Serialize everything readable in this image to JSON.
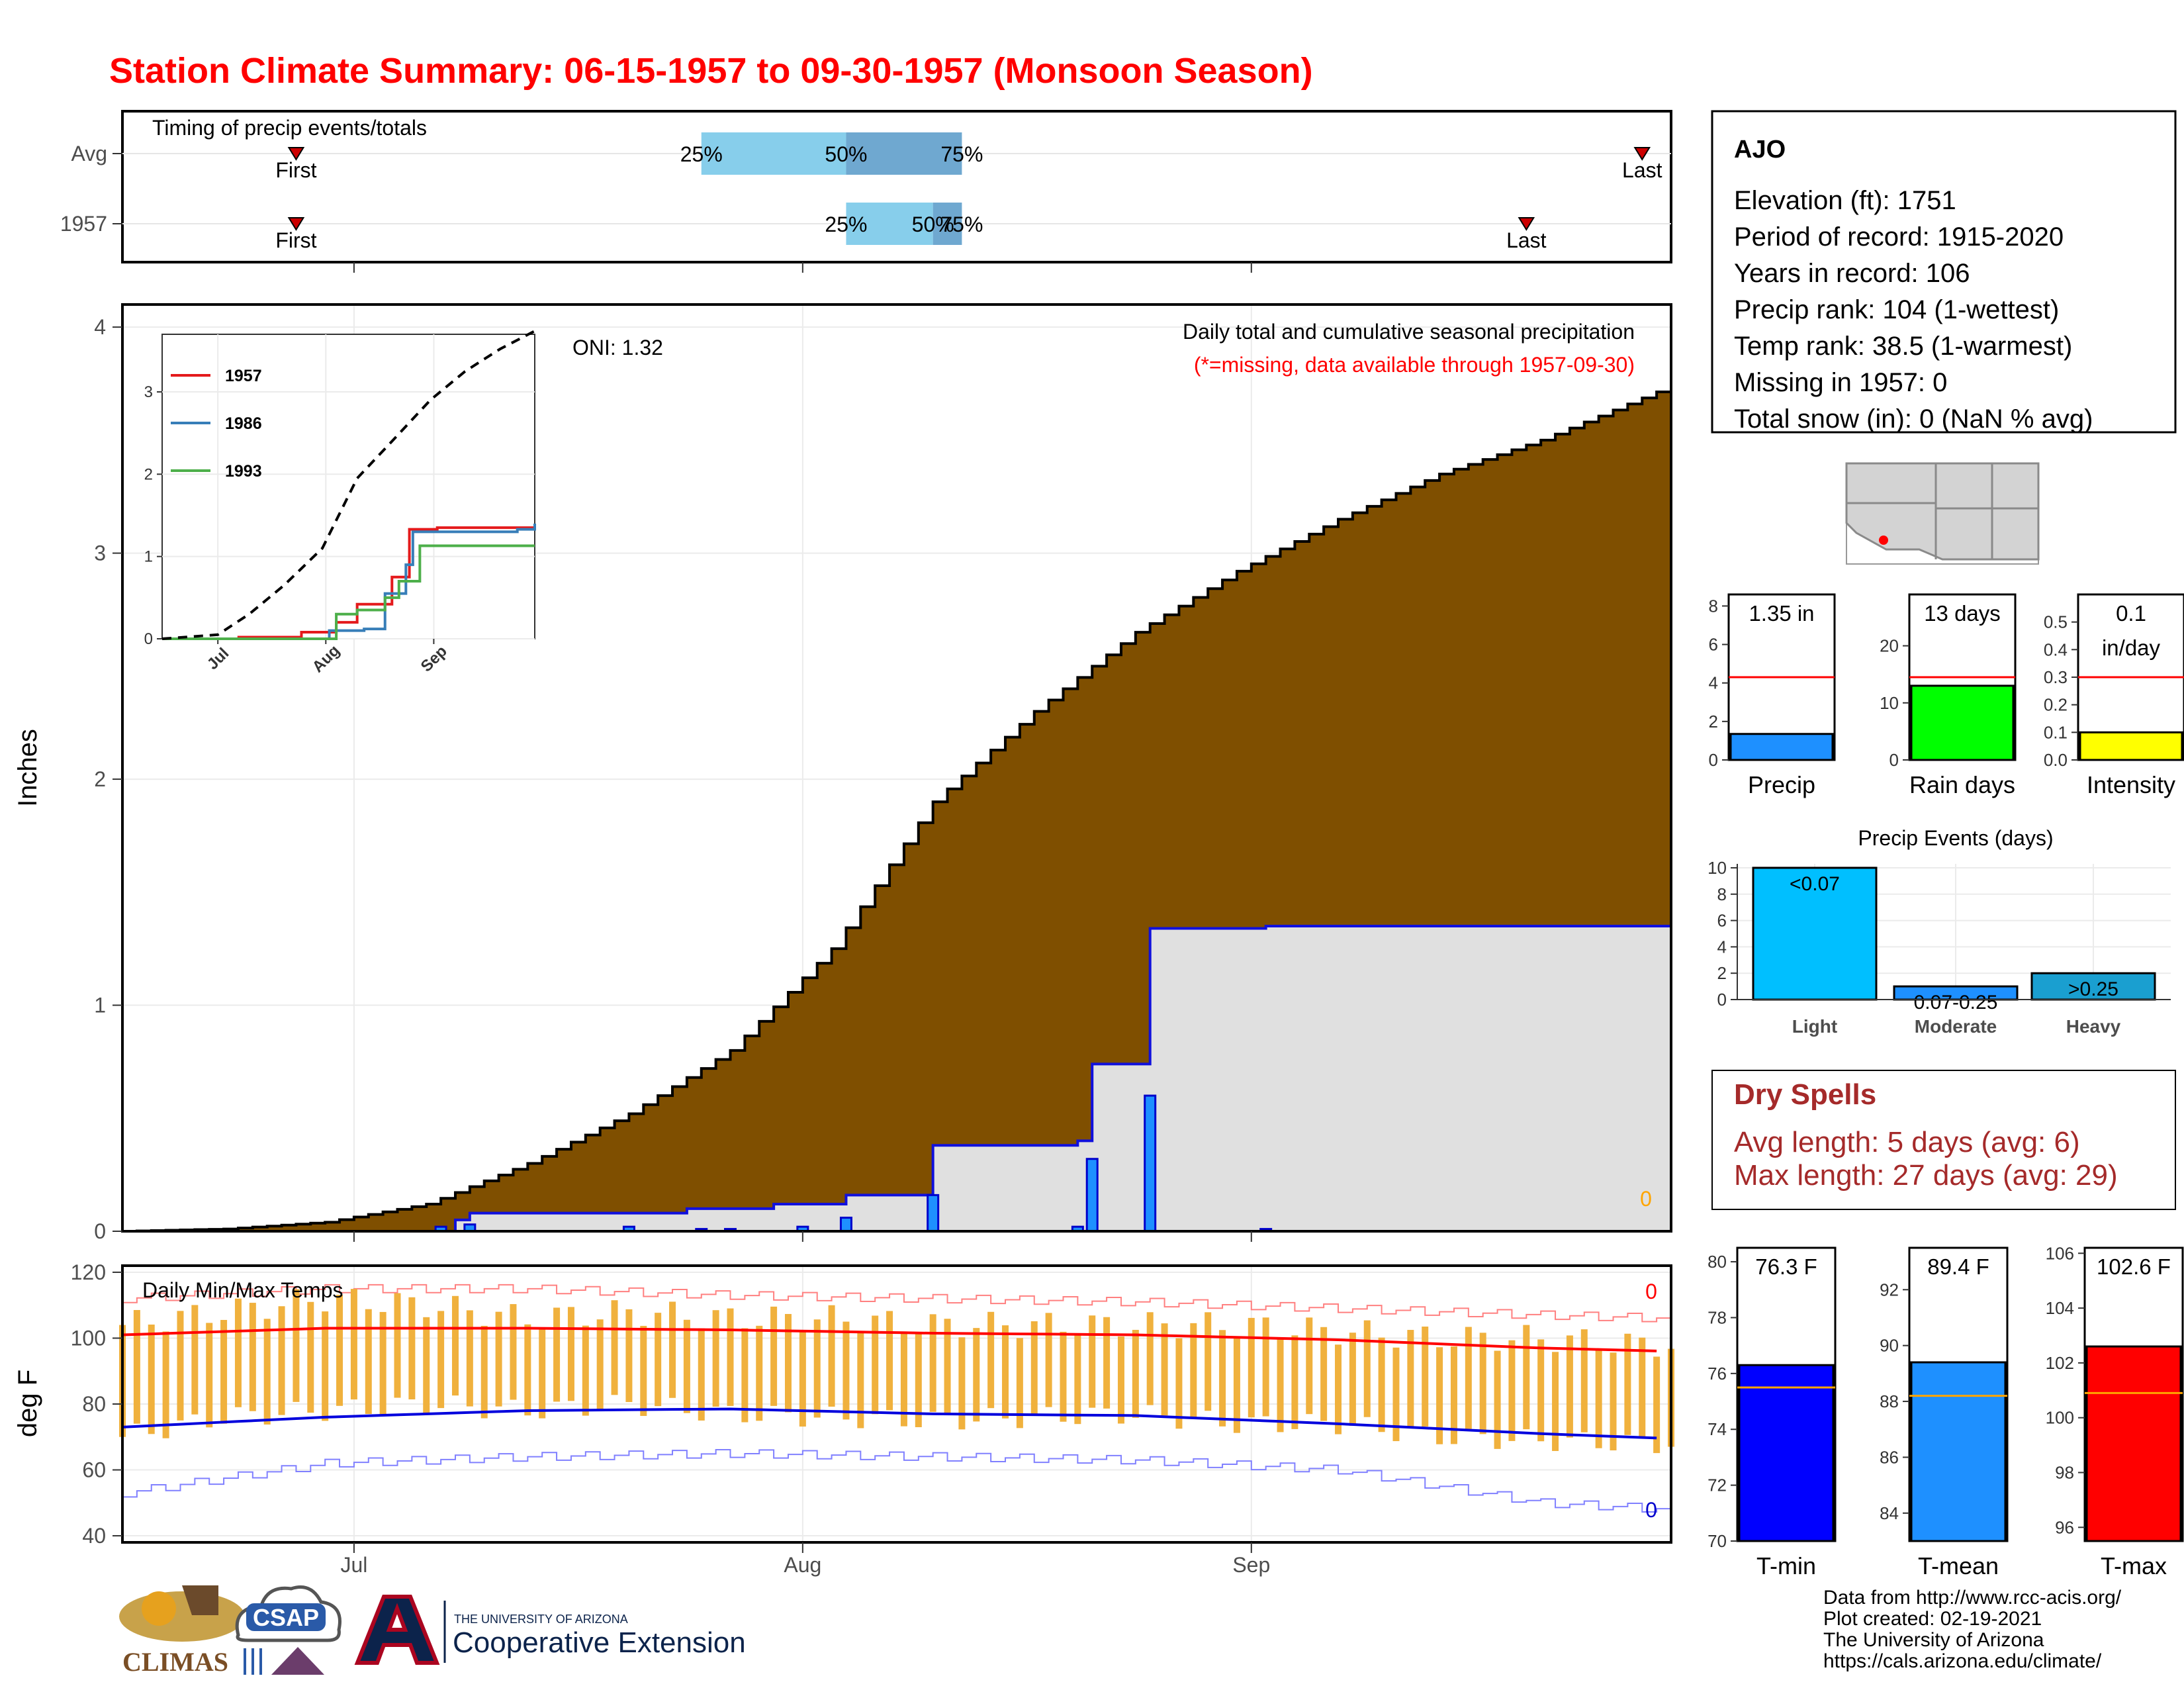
{
  "title": "Station Climate Summary: 06-15-1957 to 09-30-1957 (Monsoon Season)",
  "timing": {
    "title": "Timing of precip events/totals",
    "rows": [
      {
        "label": "Avg",
        "q25_date": "1957-07-25",
        "q50_date": "1957-08-04",
        "q75_date": "1957-08-12",
        "q25_label": "25%",
        "q50_label": "50%",
        "q75_label": "75%",
        "first_date": "1957-06-27",
        "first_label": "First",
        "last_date": "1957-09-28",
        "last_label": "Last"
      },
      {
        "label": "1957",
        "q25_date": "1957-08-04",
        "q50_date": "1957-08-10",
        "q75_date": "1957-08-12",
        "q25_label": "25%",
        "q50_label": "50%",
        "q75_label": "75%",
        "first_date": "1957-06-27",
        "first_label": "First",
        "last_date": "1957-09-20",
        "last_label": "Last"
      }
    ],
    "colors": {
      "light": "#87ceeb",
      "dark": "#6fa8d0",
      "marker": "#cc0000"
    }
  },
  "precip_panel": {
    "title": "Daily total and cumulative seasonal precipitation",
    "subtitle": "(*=missing, data available through 1957-09-30)",
    "oni_label": "ONI: 1.32",
    "ylabel": "Inches",
    "missing_count": "0",
    "yticks": [
      "0",
      "1",
      "2",
      "3",
      "4"
    ],
    "xticks": [
      {
        "date": "1957-07-01",
        "label": "Jul"
      },
      {
        "date": "1957-08-01",
        "label": "Aug"
      },
      {
        "date": "1957-09-01",
        "label": "Sep"
      }
    ],
    "inset": {
      "yticks": [
        "0",
        "1",
        "2",
        "3"
      ],
      "xticks": [
        "Jul",
        "Aug",
        "Sep"
      ],
      "legend": [
        {
          "name": "1957",
          "color": "#e41a1c"
        },
        {
          "name": "1986",
          "color": "#377eb8"
        },
        {
          "name": "1993",
          "color": "#4daf4a"
        }
      ]
    }
  },
  "temp_panel": {
    "title": "Daily Min/Max Temps",
    "ylabel": "deg F",
    "yticks": [
      "40",
      "60",
      "80",
      "100",
      "120"
    ],
    "record_high_missing": "0",
    "record_low_missing": "0",
    "xticks": [
      {
        "date": "1957-07-01",
        "label": "Jul"
      },
      {
        "date": "1957-08-01",
        "label": "Aug"
      },
      {
        "date": "1957-09-01",
        "label": "Sep"
      }
    ]
  },
  "station": {
    "name": "AJO",
    "lines": [
      "Elevation (ft): 1751",
      "Period of record: 1915-2020",
      "Years in record: 106",
      "Precip rank: 104 (1-wettest)",
      "Temp rank: 38.5 (1-warmest)",
      "Missing in 1957: 0",
      "Total snow (in): 0 (NaN % avg)"
    ]
  },
  "summary_bars": [
    {
      "label": "Precip",
      "value_label": "1.35 in",
      "value": 1.35,
      "avg": 4.3,
      "ymin": 0,
      "ymax": 8.6,
      "ticks": [
        "0",
        "2",
        "4",
        "6",
        "8"
      ],
      "tick_values": [
        0,
        2,
        4,
        6,
        8
      ],
      "color": "#1e90ff"
    },
    {
      "label": "Rain days",
      "value_label": "13 days",
      "value": 13,
      "avg": 14.5,
      "ymin": 0,
      "ymax": 29,
      "ticks": [
        "0",
        "10",
        "20"
      ],
      "tick_values": [
        0,
        10,
        20
      ],
      "color": "#00ff00"
    },
    {
      "label": "Intensity",
      "value_label": "0.1 in/day",
      "value_label_lines": [
        "0.1",
        "in/day"
      ],
      "value": 0.1,
      "avg": 0.3,
      "ymin": 0,
      "ymax": 0.6,
      "ticks": [
        "0.0",
        "0.1",
        "0.2",
        "0.3",
        "0.4",
        "0.5"
      ],
      "tick_values": [
        0,
        0.1,
        0.2,
        0.3,
        0.4,
        0.5
      ],
      "color": "#ffff00"
    }
  ],
  "precip_events": {
    "title": "Precip Events (days)",
    "categories": [
      "Light",
      "Moderate",
      "Heavy"
    ],
    "bar_labels": [
      "<0.07",
      "0.07-0.25",
      ">0.25"
    ],
    "values": [
      10,
      1,
      2
    ],
    "colors": [
      "#00bfff",
      "#1e90ff",
      "#1a9fd0"
    ],
    "ticks": [
      "0",
      "2",
      "4",
      "6",
      "8",
      "10"
    ]
  },
  "dry_spells": {
    "title": "Dry Spells",
    "avg_line": "Avg length: 5 days (avg: 6)",
    "max_line": "Max length: 27 days (avg: 29)"
  },
  "temp_bars": [
    {
      "label": "T-min",
      "value_label": "76.3 F",
      "value": 76.3,
      "avg": 75.5,
      "ymin": 70,
      "ymax": 80.5,
      "ticks": [
        "70",
        "72",
        "74",
        "76",
        "78",
        "80"
      ],
      "tick_values": [
        70,
        72,
        74,
        76,
        78,
        80
      ],
      "color": "#0000ff"
    },
    {
      "label": "T-mean",
      "value_label": "89.4 F",
      "value": 89.4,
      "avg": 88.2,
      "ymin": 83,
      "ymax": 93.5,
      "ticks": [
        "84",
        "86",
        "88",
        "90",
        "92"
      ],
      "tick_values": [
        84,
        86,
        88,
        90,
        92
      ],
      "color": "#1e90ff"
    },
    {
      "label": "T-max",
      "value_label": "102.6 F",
      "value": 102.6,
      "avg": 100.9,
      "ymin": 95.5,
      "ymax": 106.2,
      "ticks": [
        "96",
        "98",
        "100",
        "102",
        "104",
        "106"
      ],
      "tick_values": [
        96,
        98,
        100,
        102,
        104,
        106
      ],
      "color": "#ff0000"
    }
  ],
  "footer": {
    "lines": [
      "Data from http://www.rcc-acis.org/",
      "Plot created: 02-19-2021",
      "The University of Arizona",
      "https://cals.arizona.edu/climate/"
    ],
    "logos": {
      "climas": "CLIMAS",
      "csap": "CSAP",
      "ua_top": "THE UNIVERSITY OF ARIZONA",
      "ua_bottom": "Cooperative Extension"
    }
  },
  "chart_data": [
    {
      "type": "area",
      "title": "Daily total and cumulative seasonal precipitation",
      "ylabel": "Inches",
      "ylim": [
        0,
        4.1
      ],
      "x_start": "1957-06-15",
      "x_end": "1957-09-30",
      "avg_cumulative_weekly": [
        [
          "1957-06-15",
          0.0
        ],
        [
          "1957-06-22",
          0.01
        ],
        [
          "1957-06-29",
          0.04
        ],
        [
          "1957-07-06",
          0.12
        ],
        [
          "1957-07-13",
          0.3
        ],
        [
          "1957-07-20",
          0.52
        ],
        [
          "1957-07-27",
          0.8
        ],
        [
          "1957-08-03",
          1.25
        ],
        [
          "1957-08-10",
          1.9
        ],
        [
          "1957-08-17",
          2.3
        ],
        [
          "1957-08-24",
          2.65
        ],
        [
          "1957-08-31",
          2.92
        ],
        [
          "1957-09-07",
          3.15
        ],
        [
          "1957-09-14",
          3.35
        ],
        [
          "1957-09-21",
          3.5
        ],
        [
          "1957-09-30",
          3.74
        ]
      ],
      "cumulative_1957_steps": [
        [
          "1957-06-15",
          0.0
        ],
        [
          "1957-07-08",
          0.05
        ],
        [
          "1957-07-09",
          0.08
        ],
        [
          "1957-07-24",
          0.1
        ],
        [
          "1957-07-30",
          0.12
        ],
        [
          "1957-08-04",
          0.16
        ],
        [
          "1957-08-10",
          0.38
        ],
        [
          "1957-08-20",
          0.4
        ],
        [
          "1957-08-21",
          0.74
        ],
        [
          "1957-08-25",
          1.34
        ],
        [
          "1957-09-02",
          1.35
        ],
        [
          "1957-09-30",
          1.35
        ]
      ],
      "daily_1957": [
        [
          "1957-07-07",
          0.02
        ],
        [
          "1957-07-09",
          0.03
        ],
        [
          "1957-07-20",
          0.02
        ],
        [
          "1957-07-25",
          0.01
        ],
        [
          "1957-07-27",
          0.01
        ],
        [
          "1957-08-01",
          0.02
        ],
        [
          "1957-08-04",
          0.06
        ],
        [
          "1957-08-10",
          0.16
        ],
        [
          "1957-08-20",
          0.02
        ],
        [
          "1957-08-21",
          0.32
        ],
        [
          "1957-08-25",
          0.6
        ],
        [
          "1957-09-02",
          0.01
        ]
      ]
    },
    {
      "type": "line",
      "title": "",
      "series": [
        {
          "name": "1957",
          "points": [
            [
              "1957-06-15",
              0
            ],
            [
              "1957-07-07",
              0.02
            ],
            [
              "1957-07-25",
              0.08
            ],
            [
              "1957-08-04",
              0.2
            ],
            [
              "1957-08-10",
              0.42
            ],
            [
              "1957-08-20",
              0.75
            ],
            [
              "1957-08-25",
              1.33
            ],
            [
              "1957-09-02",
              1.35
            ],
            [
              "1957-09-30",
              1.35
            ]
          ]
        },
        {
          "name": "1986",
          "points": [
            [
              "1957-06-15",
              0
            ],
            [
              "1957-07-30",
              0
            ],
            [
              "1957-08-02",
              0.1
            ],
            [
              "1957-08-12",
              0.12
            ],
            [
              "1957-08-18",
              0.55
            ],
            [
              "1957-08-24",
              0.9
            ],
            [
              "1957-08-26",
              1.3
            ],
            [
              "1957-09-25",
              1.33
            ],
            [
              "1957-09-30",
              1.4
            ]
          ]
        },
        {
          "name": "1993",
          "points": [
            [
              "1957-06-15",
              0
            ],
            [
              "1957-07-28",
              0
            ],
            [
              "1957-08-04",
              0.3
            ],
            [
              "1957-08-10",
              0.35
            ],
            [
              "1957-08-18",
              0.5
            ],
            [
              "1957-08-22",
              0.7
            ],
            [
              "1957-08-28",
              1.13
            ],
            [
              "1957-09-30",
              1.13
            ]
          ]
        },
        {
          "name": "",
          "points": [
            [
              "1957-06-15",
              0
            ],
            [
              "1957-07-01",
              0.05
            ],
            [
              "1957-07-10",
              0.3
            ],
            [
              "1957-07-20",
              0.65
            ],
            [
              "1957-07-31",
              1.1
            ],
            [
              "1957-08-10",
              1.95
            ],
            [
              "1957-08-20",
              2.4
            ],
            [
              "1957-08-31",
              2.9
            ],
            [
              "1957-09-10",
              3.25
            ],
            [
              "1957-09-20",
              3.52
            ],
            [
              "1957-09-30",
              3.74
            ]
          ]
        }
      ]
    },
    {
      "type": "line",
      "title": "Daily Min/Max Temps",
      "ylabel": "deg F",
      "ylim": [
        38,
        122
      ],
      "avg_max_weekly": [
        [
          "1957-06-15",
          101
        ],
        [
          "1957-06-29",
          103
        ],
        [
          "1957-07-13",
          103
        ],
        [
          "1957-07-27",
          102.5
        ],
        [
          "1957-08-10",
          101.5
        ],
        [
          "1957-08-24",
          101
        ],
        [
          "1957-09-07",
          99.5
        ],
        [
          "1957-09-21",
          97
        ],
        [
          "1957-09-30",
          96
        ]
      ],
      "avg_min_weekly": [
        [
          "1957-06-15",
          73
        ],
        [
          "1957-06-29",
          76
        ],
        [
          "1957-07-13",
          78
        ],
        [
          "1957-07-27",
          78.5
        ],
        [
          "1957-08-10",
          77
        ],
        [
          "1957-08-24",
          76.5
        ],
        [
          "1957-09-07",
          74
        ],
        [
          "1957-09-21",
          71
        ],
        [
          "1957-09-30",
          69.5
        ]
      ],
      "record_high_weekly": [
        [
          "1957-06-15",
          112
        ],
        [
          "1957-06-29",
          115
        ],
        [
          "1957-07-13",
          115
        ],
        [
          "1957-07-27",
          113
        ],
        [
          "1957-08-10",
          112
        ],
        [
          "1957-08-24",
          111
        ],
        [
          "1957-09-07",
          109
        ],
        [
          "1957-09-21",
          107
        ],
        [
          "1957-09-30",
          106
        ]
      ],
      "record_low_weekly": [
        [
          "1957-06-15",
          53
        ],
        [
          "1957-06-29",
          62
        ],
        [
          "1957-07-13",
          64
        ],
        [
          "1957-07-27",
          65
        ],
        [
          "1957-08-10",
          64
        ],
        [
          "1957-08-24",
          63
        ],
        [
          "1957-09-07",
          60
        ],
        [
          "1957-09-21",
          50
        ],
        [
          "1957-09-30",
          48
        ]
      ],
      "daily_range_1957_weekly": [
        [
          "1957-06-15",
          70,
          104
        ],
        [
          "1957-06-22",
          76,
          108
        ],
        [
          "1957-06-29",
          78,
          112
        ],
        [
          "1957-07-06",
          80,
          110
        ],
        [
          "1957-07-13",
          78,
          106
        ],
        [
          "1957-07-20",
          80,
          108
        ],
        [
          "1957-07-27",
          77,
          106
        ],
        [
          "1957-08-03",
          76,
          106
        ],
        [
          "1957-08-10",
          75,
          104
        ],
        [
          "1957-08-17",
          76,
          104
        ],
        [
          "1957-08-24",
          77,
          104
        ],
        [
          "1957-08-31",
          74,
          104
        ],
        [
          "1957-09-07",
          74,
          102
        ],
        [
          "1957-09-14",
          70,
          100
        ],
        [
          "1957-09-21",
          69,
          100
        ],
        [
          "1957-09-28",
          68,
          98
        ]
      ]
    },
    {
      "type": "bar",
      "title": "Precip Events (days)",
      "categories": [
        "Light",
        "Moderate",
        "Heavy"
      ],
      "values": [
        10,
        1,
        2
      ]
    }
  ]
}
